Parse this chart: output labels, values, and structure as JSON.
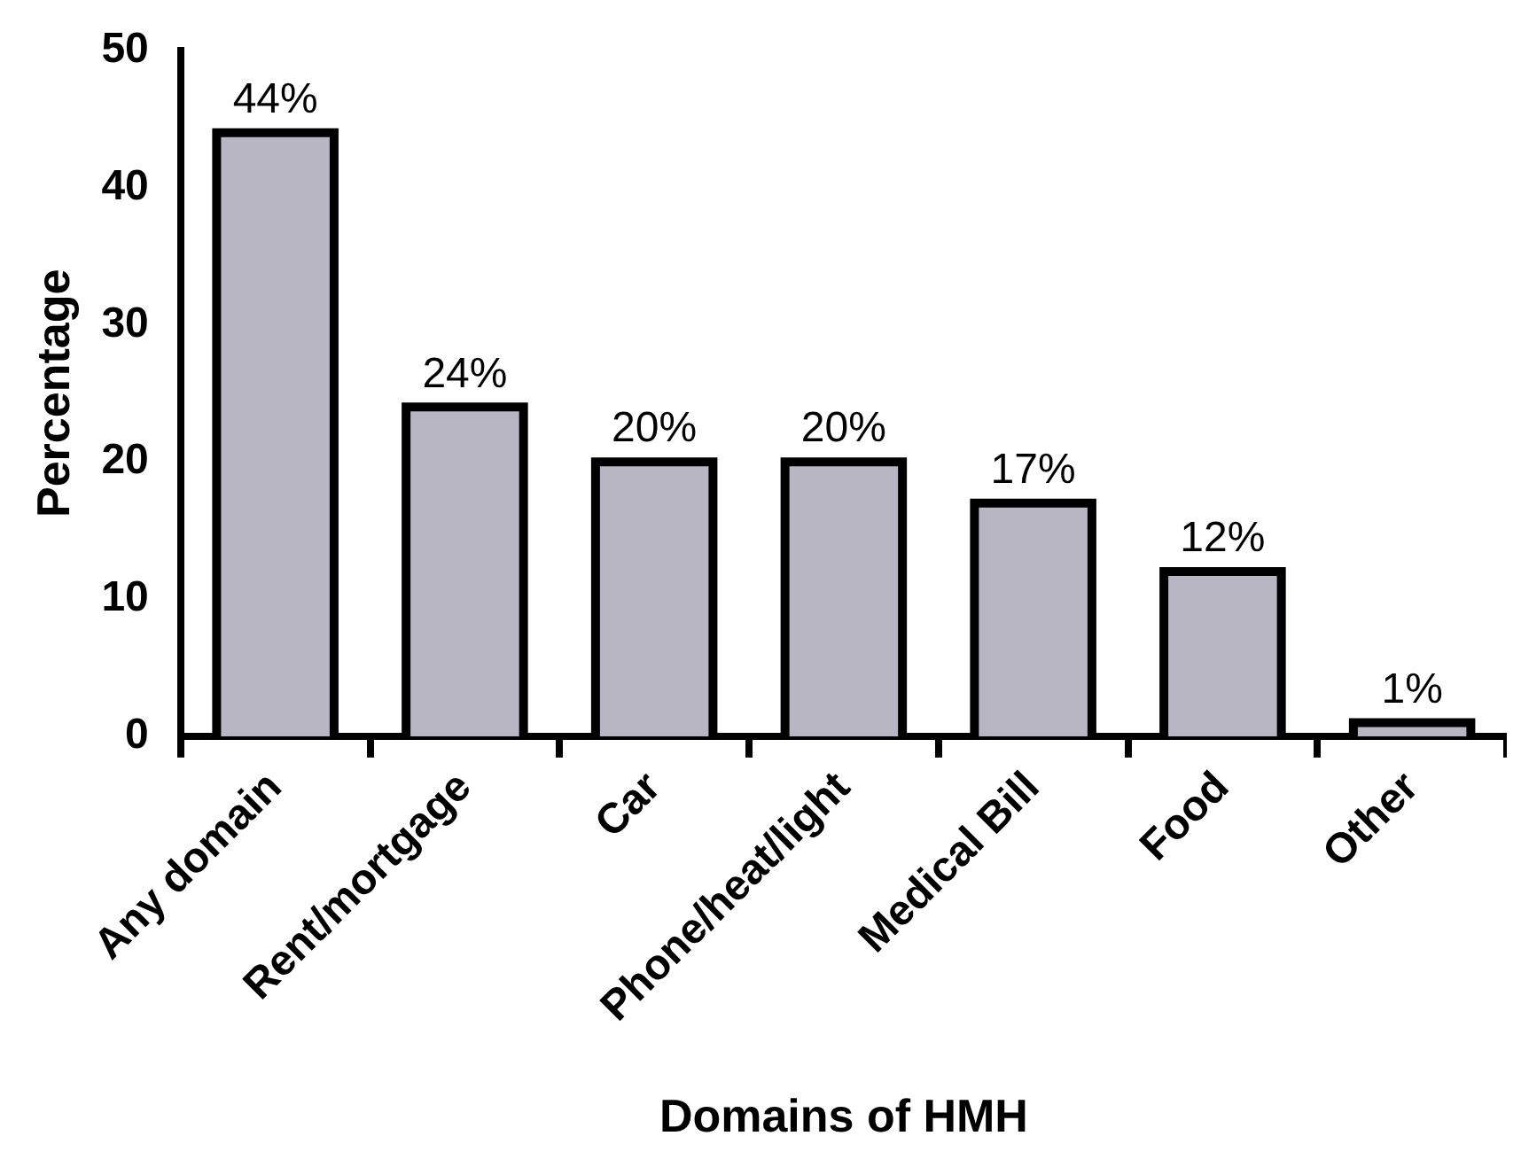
{
  "chart_data": {
    "type": "bar",
    "xlabel": "Domains of HMH",
    "ylabel": "Percentage",
    "categories": [
      "Any domain",
      "Rent/mortgage",
      "Car",
      "Phone/heat/light",
      "Medical Bill",
      "Food",
      "Other"
    ],
    "values": [
      44,
      24,
      20,
      20,
      17,
      12,
      1
    ],
    "value_labels": [
      "44%",
      "24%",
      "20%",
      "20%",
      "17%",
      "12%",
      "1%"
    ],
    "color": "#b9b6c3",
    "ylim": [
      0,
      50
    ],
    "yticks": [
      0,
      10,
      20,
      30,
      40,
      50
    ],
    "grid": false,
    "legend": false
  }
}
